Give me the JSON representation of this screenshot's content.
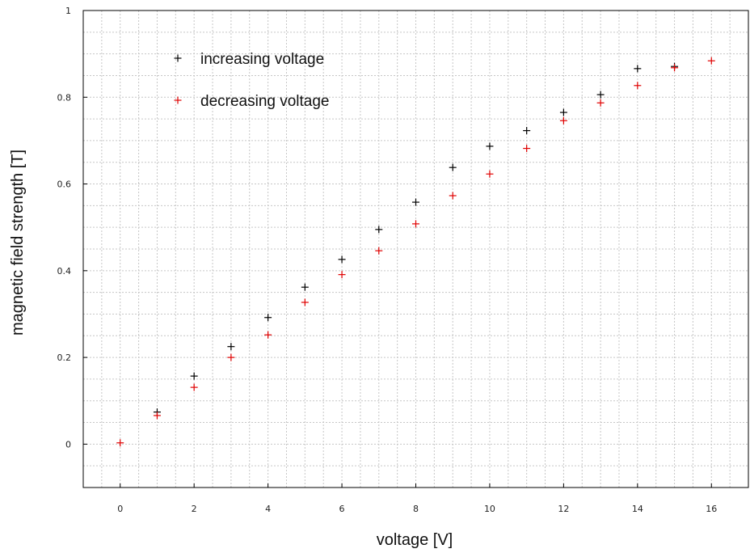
{
  "chart_data": {
    "type": "scatter",
    "xlabel": "voltage [V]",
    "ylabel": "magnetic field strength [T]",
    "xlim": [
      -1,
      17
    ],
    "ylim": [
      -0.1,
      1.0
    ],
    "x_ticks": [
      0,
      2,
      4,
      6,
      8,
      10,
      12,
      14,
      16
    ],
    "y_ticks": [
      0,
      0.2,
      0.4,
      0.6,
      0.8,
      1
    ],
    "grid": true,
    "legend_position": "top-left",
    "series": [
      {
        "name": "increasing voltage",
        "color": "#000000",
        "marker": "+",
        "x": [
          1,
          2,
          3,
          4,
          5,
          6,
          7,
          8,
          9,
          10,
          11,
          12,
          13,
          14,
          15
        ],
        "y": [
          0.074,
          0.157,
          0.225,
          0.292,
          0.362,
          0.426,
          0.495,
          0.558,
          0.638,
          0.687,
          0.723,
          0.765,
          0.806,
          0.866,
          0.871
        ]
      },
      {
        "name": "decreasing voltage",
        "color": "#e00000",
        "marker": "+",
        "x": [
          0,
          1,
          2,
          3,
          4,
          5,
          6,
          7,
          8,
          9,
          10,
          11,
          12,
          13,
          14,
          15,
          16
        ],
        "y": [
          0.003,
          0.066,
          0.131,
          0.2,
          0.252,
          0.327,
          0.391,
          0.446,
          0.508,
          0.573,
          0.623,
          0.682,
          0.746,
          0.787,
          0.827,
          0.868,
          0.884
        ]
      }
    ]
  }
}
